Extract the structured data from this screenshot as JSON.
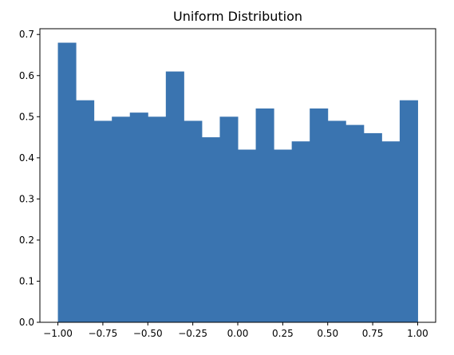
{
  "chart_data": {
    "type": "bar",
    "title": "Uniform Distribution",
    "xlabel": "",
    "ylabel": "",
    "xlim": [
      -1.1,
      1.1
    ],
    "ylim": [
      0,
      0.714
    ],
    "bin_edges": [
      -1.0,
      -0.9,
      -0.8,
      -0.7,
      -0.6,
      -0.5,
      -0.4,
      -0.3,
      -0.2,
      -0.1,
      0.0,
      0.1,
      0.2,
      0.3,
      0.4,
      0.5,
      0.6,
      0.7,
      0.8,
      0.9,
      1.0
    ],
    "values": [
      0.68,
      0.54,
      0.49,
      0.5,
      0.51,
      0.5,
      0.61,
      0.49,
      0.45,
      0.5,
      0.42,
      0.52,
      0.42,
      0.44,
      0.52,
      0.49,
      0.48,
      0.46,
      0.44,
      0.54
    ],
    "x_ticks": [
      -1.0,
      -0.75,
      -0.5,
      -0.25,
      0.0,
      0.25,
      0.5,
      0.75,
      1.0
    ],
    "x_tick_labels": [
      "−1.00",
      "−0.75",
      "−0.50",
      "−0.25",
      "0.00",
      "0.25",
      "0.50",
      "0.75",
      "1.00"
    ],
    "y_ticks": [
      0.0,
      0.1,
      0.2,
      0.3,
      0.4,
      0.5,
      0.6,
      0.7
    ],
    "y_tick_labels": [
      "0.0",
      "0.1",
      "0.2",
      "0.3",
      "0.4",
      "0.5",
      "0.6",
      "0.7"
    ],
    "bar_color": "#3a74b0",
    "grid": false,
    "legend": "none"
  }
}
